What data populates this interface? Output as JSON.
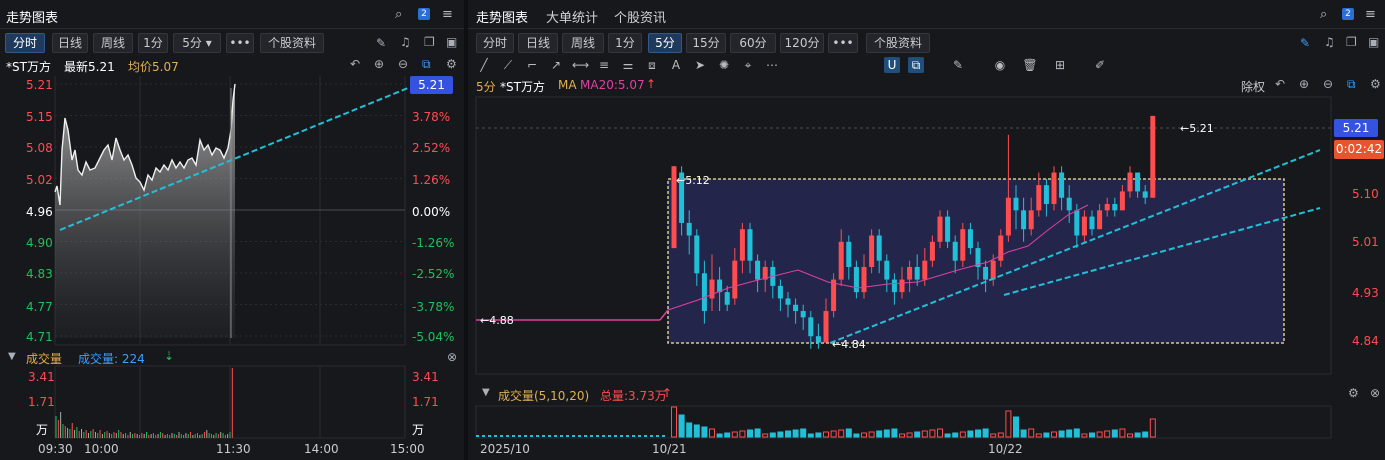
{
  "left": {
    "tab_title": "走势图表",
    "badge": "2",
    "periods": [
      "分时",
      "日线",
      "周线",
      "1分",
      "5分 ▾",
      "•••",
      "个股资料"
    ],
    "active_period": 0,
    "stock_name": "*ST万方",
    "latest_label": "最新5.21",
    "avg_label": "均价5.07",
    "price_ticks": [
      "5.21",
      "5.15",
      "5.08",
      "5.02",
      "4.96",
      "4.90",
      "4.83",
      "4.77",
      "4.71"
    ],
    "pct_ticks": [
      "3.78%",
      "2.52%",
      "1.26%",
      "0.00%",
      "-1.26%",
      "-2.52%",
      "-3.78%",
      "-5.04%"
    ],
    "current_price_tag": "5.21",
    "volume_title": "成交量",
    "volume_label": "成交量: 224",
    "vol_ticks": [
      "3.41",
      "1.71",
      "万"
    ],
    "time_ticks": [
      "09:30",
      "10:00",
      "11:30",
      "14:00",
      "15:00"
    ]
  },
  "right": {
    "tabs": [
      "走势图表",
      "大单统计",
      "个股资讯"
    ],
    "badge": "2",
    "periods": [
      "分时",
      "日线",
      "周线",
      "1分",
      "5分",
      "15分",
      "60分",
      "120分",
      "•••",
      "个股资料"
    ],
    "active_period": 4,
    "legend_period": "5分",
    "legend_name": "*ST万方",
    "legend_ma": "MA",
    "legend_ma20": "MA20:5.07",
    "adjust_label": "除权",
    "price_ticks": [
      "5.10",
      "5.01",
      "4.93",
      "4.84"
    ],
    "current_price_tag": "5.21",
    "countdown": "0:02:42",
    "annotations": {
      "high": "5.21",
      "box_top": "5.12",
      "left": "4.88",
      "low": "4.84"
    },
    "volume_title": "成交量(5,10,20)",
    "total_volume": "总量:3.73万",
    "date_ticks": [
      "2025/10",
      "10/21",
      "10/22"
    ]
  },
  "colors": {
    "up": "#ff4d4f",
    "down": "#22c0d8",
    "accent": "#2b6fd6",
    "ma": "#e040a0",
    "trend": "#22c0d8"
  }
}
